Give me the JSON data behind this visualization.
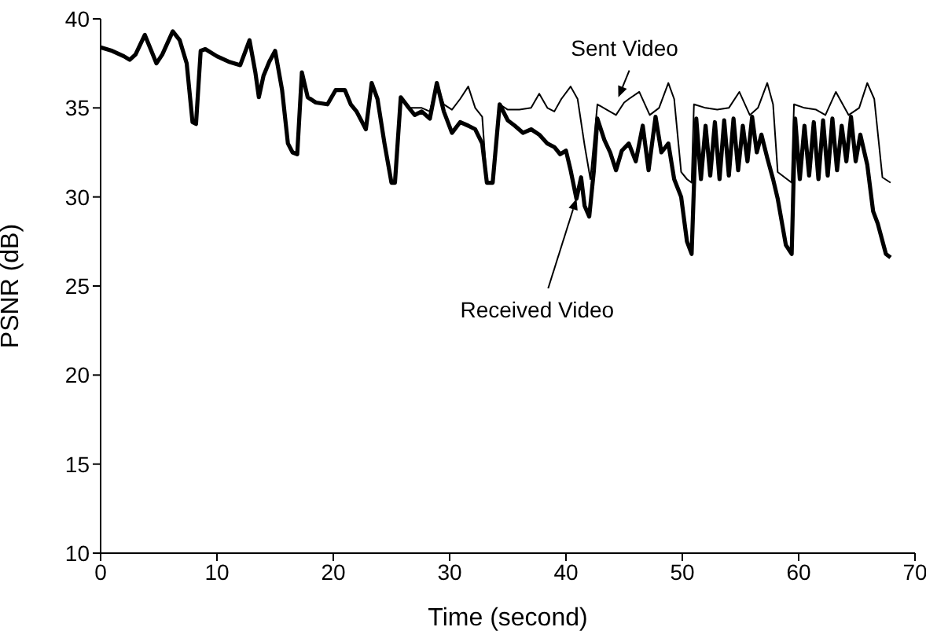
{
  "chart_data": {
    "type": "line",
    "xlabel": "Time (second)",
    "ylabel": "PSNR (dB)",
    "xlim": [
      0,
      70
    ],
    "xticks": [
      0,
      10,
      20,
      30,
      40,
      50,
      60,
      70
    ],
    "ylim": [
      10,
      40
    ],
    "yticks": [
      10,
      15,
      20,
      25,
      30,
      35,
      40
    ],
    "marker": "none",
    "line_style": "solid",
    "annotations": [
      {
        "text": "Sent Video",
        "x": 44.5,
        "y": 35.6
      },
      {
        "text": "Received Video",
        "x": 40.9,
        "y": 29.9
      }
    ],
    "series": [
      {
        "color": "#000000",
        "x": [
          0,
          1,
          2,
          2.5,
          3,
          3.8,
          4.3,
          4.8,
          5.3,
          6.2,
          6.8,
          7.4,
          7.9,
          8.2,
          8.6,
          9,
          10,
          11,
          12,
          12.8,
          13.3,
          13.6,
          14,
          14.5,
          15,
          15.6,
          16.1,
          16.5,
          16.9,
          17.3,
          17.8,
          18.5,
          19.5,
          20.2,
          21,
          21.5,
          22,
          22.8,
          23.3,
          23.8,
          24.4,
          25,
          25.3,
          25.8,
          26.5,
          27,
          27.6,
          28.3,
          28.9,
          29.5,
          30.2,
          30.9,
          31.6,
          32.2,
          32.8,
          33.2,
          33.7,
          34.3,
          35,
          36,
          37,
          37.7,
          38.4,
          39,
          39.6,
          40.4,
          41,
          41.6,
          42.1,
          42.7,
          43.5,
          44.3,
          45,
          45.4,
          46.3,
          47.2,
          48,
          48.8,
          49.3,
          49.9,
          50.4,
          50.8,
          51,
          52,
          53,
          54,
          54.9,
          55.8,
          56.5,
          57.3,
          57.8,
          58.2,
          59,
          59.4,
          59.6,
          60.5,
          61.5,
          62.3,
          63.2,
          64.3,
          65.2,
          65.9,
          66.5,
          67.2,
          67.9
        ],
        "values": [
          38.4,
          38.2,
          37.9,
          37.7,
          38.0,
          39.1,
          38.3,
          37.5,
          38.0,
          39.3,
          38.8,
          37.5,
          34.2,
          34.1,
          38.2,
          38.3,
          37.9,
          37.6,
          37.4,
          38.8,
          37.0,
          35.6,
          36.8,
          37.6,
          38.2,
          36.0,
          33.0,
          32.5,
          32.4,
          37.0,
          35.6,
          35.3,
          35.2,
          36.0,
          36.0,
          35.2,
          34.8,
          33.8,
          36.4,
          35.5,
          33.0,
          30.8,
          30.8,
          35.6,
          35.0,
          35.0,
          35.0,
          34.8,
          36.4,
          35.2,
          34.9,
          35.5,
          36.2,
          35.0,
          34.5,
          30.8,
          30.8,
          35.2,
          34.9,
          34.9,
          35.0,
          35.8,
          35.0,
          34.8,
          35.5,
          36.2,
          35.5,
          32.9,
          31.0,
          35.2,
          34.9,
          34.6,
          35.3,
          35.5,
          35.9,
          34.6,
          35.0,
          36.4,
          35.5,
          31.4,
          31.0,
          30.8,
          35.2,
          35.0,
          34.9,
          35.0,
          35.9,
          34.6,
          35.0,
          36.4,
          35.2,
          31.4,
          31.0,
          30.8,
          35.2,
          35.0,
          34.9,
          34.6,
          35.9,
          34.6,
          35.0,
          36.4,
          35.5,
          31.1,
          30.8
        ]
      },
      {
        "color": "#000000",
        "x": [
          0,
          1,
          2,
          2.5,
          3,
          3.8,
          4.3,
          4.8,
          5.3,
          6.2,
          6.8,
          7.4,
          7.9,
          8.2,
          8.6,
          9,
          10,
          11,
          12,
          12.8,
          13.3,
          13.6,
          14,
          14.5,
          15,
          15.6,
          16.1,
          16.5,
          16.9,
          17.3,
          17.8,
          18.5,
          19.5,
          20.2,
          21,
          21.5,
          22,
          22.8,
          23.3,
          23.8,
          24.4,
          25,
          25.3,
          25.8,
          26.5,
          27,
          27.6,
          28.3,
          28.9,
          29.5,
          30.2,
          30.9,
          31.6,
          32.2,
          32.8,
          33.2,
          33.7,
          34.3,
          35,
          35.6,
          36.3,
          37,
          37.7,
          38.4,
          39,
          39.5,
          40,
          40.4,
          40.9,
          41.3,
          41.6,
          42,
          42.4,
          42.7,
          43.3,
          43.8,
          44.3,
          44.8,
          45.4,
          46,
          46.6,
          47.1,
          47.7,
          48.2,
          48.8,
          49.3,
          49.9,
          50.4,
          50.8,
          51.2,
          51.6,
          52,
          52.4,
          52.8,
          53.2,
          53.6,
          54,
          54.4,
          54.8,
          55.2,
          55.6,
          56,
          56.4,
          56.8,
          57.3,
          57.8,
          58.2,
          58.9,
          59.4,
          59.7,
          60.1,
          60.5,
          60.9,
          61.3,
          61.7,
          62.1,
          62.5,
          62.9,
          63.3,
          63.7,
          64.1,
          64.5,
          64.9,
          65.3,
          65.9,
          66.4,
          66.8,
          67.5,
          67.9
        ],
        "values": [
          38.4,
          38.2,
          37.9,
          37.7,
          38.0,
          39.1,
          38.3,
          37.5,
          38.0,
          39.3,
          38.8,
          37.5,
          34.2,
          34.1,
          38.2,
          38.3,
          37.9,
          37.6,
          37.4,
          38.8,
          37.0,
          35.6,
          36.8,
          37.6,
          38.2,
          36.0,
          33.0,
          32.5,
          32.4,
          37.0,
          35.6,
          35.3,
          35.2,
          36.0,
          36.0,
          35.2,
          34.8,
          33.8,
          36.4,
          35.5,
          33.0,
          30.8,
          30.8,
          35.6,
          35.0,
          34.6,
          34.8,
          34.4,
          36.4,
          34.8,
          33.6,
          34.2,
          34.0,
          33.8,
          33.0,
          30.8,
          30.8,
          35.2,
          34.3,
          34.0,
          33.6,
          33.8,
          33.5,
          33.0,
          32.8,
          32.4,
          32.6,
          31.5,
          29.9,
          31.1,
          29.5,
          28.9,
          31.5,
          34.4,
          33.2,
          32.5,
          31.5,
          32.6,
          33.0,
          32.0,
          34.0,
          31.5,
          34.5,
          32.5,
          33.0,
          31.0,
          30.0,
          27.5,
          26.8,
          34.4,
          31.0,
          34.0,
          31.2,
          34.2,
          31.0,
          34.3,
          31.2,
          34.4,
          31.5,
          34.0,
          32.0,
          34.5,
          32.5,
          33.5,
          32.2,
          31.0,
          29.9,
          27.3,
          26.8,
          34.4,
          31.0,
          34.0,
          31.2,
          34.2,
          31.0,
          34.3,
          31.2,
          34.4,
          31.5,
          34.0,
          32.0,
          34.5,
          32.0,
          33.5,
          31.8,
          29.2,
          28.5,
          26.8,
          26.6
        ]
      }
    ]
  }
}
